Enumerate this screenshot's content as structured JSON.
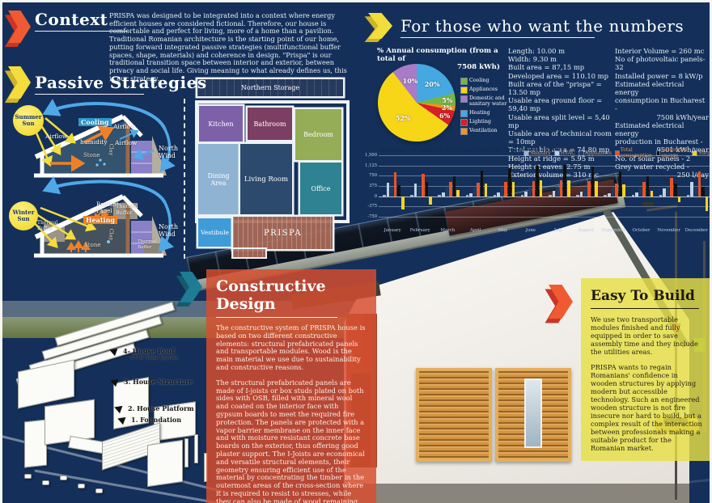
{
  "sections": {
    "context": {
      "title": "Context",
      "body": "PRISPA was designed to be integrated into a context where energy efficient houses are considered fictional. Therefore, our house is comfortable and perfect for living, more of a home than a pavilion.\nTraditional Romanian architecture is the starting point of our home, putting forward integrated passive strategies (multifunctional buffer spaces, shape, materials) and coherence in design.  \"Prispa\" is our traditional transition space between interior and exterior, between privacy and social life. Giving meaning to what already defines us, this is our strategy."
    },
    "passive": {
      "title": "Passive Strategies",
      "summer": {
        "sun": "Summer\nSun",
        "cooling": "Cooling",
        "airflow_left": "Airflow",
        "humidity": "humidity",
        "airflow_top": "Airflow",
        "airflow_right": "Airflow",
        "stone": "Stone",
        "clay": "Clay",
        "north_wind": "North\nWind"
      },
      "winter": {
        "sun": "Winter\nSun",
        "thermal_left": "Thermal\nBuffer",
        "radiant_panel": "Radiant\nPanel",
        "heating": "Heating",
        "thermal_top": "Thermal\nBuffer",
        "stone": "Stone",
        "clay": "Clay",
        "thermal_bottom": "Thermal\nBuffer",
        "north_wind": "North\nWind"
      }
    },
    "floorplan": {
      "rooms": {
        "storage": "Northern Storage",
        "kitchen": "Kitchen",
        "bathroom": "Bathroom",
        "bedroom": "Bedroom",
        "dining": "Dining\nArea",
        "living": "Living Room",
        "office": "Office",
        "vestibule": "Vestibule",
        "prispa": "PRISPA"
      }
    },
    "numbers": {
      "title": "For those who want the numbers",
      "stats_left": [
        "Length: 10.00 m",
        "Width: 9.30 m",
        "Built area = 87,15 mp",
        "Developed area = 110.10 mp",
        "Built area of the \"prispa\" = 13.50 mp",
        "Usable area ground floor = 59,40 mp",
        "Usable area split level = 5,40 mp",
        "Usable area of technical room = 10mp",
        "Total usable area = 74,80 mp",
        "Height at ridge = 5.95 m",
        "Height at eaves: 2.75 m",
        "Exterior volume = 310 mc"
      ],
      "stats_right": [
        {
          "t": "Interior Volume = 260 mc"
        },
        {
          "t": "No of photovoltaic panels-32"
        },
        {
          "t": "Installed power = 8 kW/p"
        },
        {
          "t": "Estimated electrical energy"
        },
        {
          "t": "consumption in Bucharest -"
        },
        {
          "t": "7508 kWh/year",
          "r": true
        },
        {
          "t": "Estimated electrical energy"
        },
        {
          "t": "production in Bucharest -"
        },
        {
          "t": "9501 kWh/year",
          "r": true
        },
        {
          "t": "No. of solar panels - 2"
        },
        {
          "t": "Grey water recycled -"
        },
        {
          "t": "250 l/day",
          "r": true
        }
      ]
    },
    "constructive": {
      "title": "Constructive Design",
      "p1": "The constructive system of PRISPA house is based on two different constructive elements: structural prefabricated panels and transportable modules. Wood is the main material we use due to sustainability and constructive reasons.",
      "p2": "The structural prefabricated panels are made of I-joists or box studs plated on both sides with OSB, filled with mineral wool and coated on the interior face with gypsum boards to meet the required fire protection. The panels are protected with a vapor barrier membrane on the inner face and with moisture resistant concrete base boards on the exterior, thus offering good plaster support. The I-Joists are economical and versatile structural elements, their geometry ensuring efficient use of the material by concentrating the timber in the outermost areas of the cross-section where it is required to resist to stresses, while they can also be made of wood remaining from the industrial process."
    },
    "easy": {
      "title": "Easy To Build",
      "p1": "We use two transportable modules finished and fully equipped in order to save assembly time and they include the utilities areas.",
      "p2": "PRISPA wants to regain Romanians' confidence in wooden structures by applying modern but accessible technology. Such an engineered wooden structure is not fire insecure nor hard to build, but a complex result of the interaction between professionals making a suitable product for the Romanian market."
    },
    "exploded": {
      "roof": "4- House Roof",
      "roof_sub": "- PV & Solar System",
      "structure": "3. House Structure",
      "platform": "2. House Platform",
      "foundation": "1. Foundation"
    }
  },
  "colors": {
    "accent_orange": "#f05a32",
    "accent_orange_dark": "#c93527",
    "accent_yellow": "#f2dd3c",
    "accent_yellow_dark": "#cdb32a",
    "accent_teal": "#1e7d95",
    "accent_teal_dark": "#145a6e",
    "panel_orange": "rgba(214,78,46,0.84)",
    "panel_yellow": "rgba(230,223,70,0.82)"
  },
  "chart_data": [
    {
      "type": "pie",
      "title": "% Annual consumption (from a total of 7508 kWh)",
      "title_lines": [
        "% Annual consumption (from a total of",
        "7508 kWh)"
      ],
      "total_kwh": 7508,
      "slices": [
        {
          "label": "Heating",
          "value": 20,
          "color": "#45a8e0"
        },
        {
          "label": "Cooling",
          "value": 5,
          "color": "#76b643"
        },
        {
          "label": "Ventilation",
          "value": 2,
          "color": "#f5921e"
        },
        {
          "label": "Lighting",
          "value": 6,
          "color": "#d62027"
        },
        {
          "label": "Appliances",
          "value": 52,
          "color": "#f7d517"
        },
        {
          "label": "Domestic and sanitary water",
          "value": 10,
          "color": "#a87bc6"
        }
      ],
      "legend_order": [
        1,
        4,
        5,
        0,
        3,
        2
      ],
      "legend_position": "right"
    },
    {
      "type": "bar",
      "title": "Monthly estimated consumption for Bucharest (kWh)",
      "categories": [
        "January",
        "February",
        "March",
        "April",
        "May",
        "June",
        "July",
        "August",
        "September",
        "October",
        "November",
        "December"
      ],
      "ylim": [
        -750,
        1500
      ],
      "yticks": [
        {
          "v": 1500,
          "label": "1,500"
        },
        {
          "v": 1125,
          "label": "1,125"
        },
        {
          "v": 750,
          "label": "750"
        },
        {
          "v": 375,
          "label": "375"
        },
        {
          "v": 0,
          "label": "0"
        },
        {
          "v": -375,
          "label": "-375"
        },
        {
          "v": -750,
          "label": "-750"
        }
      ],
      "series": [
        {
          "name": "Sanitary",
          "color": "#9fb6cf",
          "values": [
            40,
            40,
            40,
            40,
            40,
            40,
            40,
            40,
            40,
            40,
            40,
            40
          ]
        },
        {
          "name": "HVAC",
          "color": "#bdd3ea",
          "values": [
            500,
            450,
            140,
            120,
            140,
            170,
            200,
            180,
            100,
            140,
            280,
            520
          ]
        },
        {
          "name": "Appliances",
          "color": "#1e3c64",
          "values": [
            340,
            330,
            330,
            330,
            330,
            330,
            340,
            330,
            330,
            330,
            340,
            350
          ]
        },
        {
          "name": "Total consumption",
          "color": "#e85428",
          "values": [
            880,
            820,
            510,
            490,
            510,
            540,
            580,
            550,
            470,
            510,
            660,
            910
          ]
        },
        {
          "name": "Generated energy",
          "color": "#111111",
          "values": [
            390,
            510,
            740,
            940,
            1040,
            1120,
            1150,
            1090,
            910,
            720,
            450,
            360
          ]
        },
        {
          "name": "Surplus/Deficit",
          "color": "#f2d327",
          "values": [
            -490,
            -310,
            230,
            450,
            530,
            580,
            570,
            540,
            440,
            210,
            -210,
            -550
          ]
        }
      ],
      "grid": true,
      "legend_position": "top-right"
    }
  ]
}
